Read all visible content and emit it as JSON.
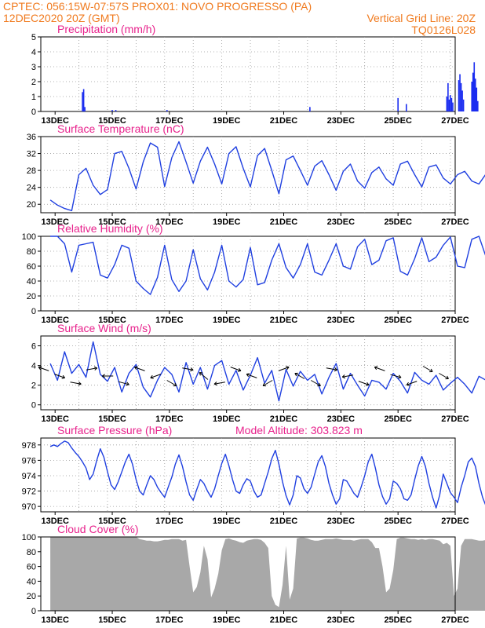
{
  "header": {
    "line1_left": "CPTEC:   056:15W-07:57S   PROX01: NOVO PROGRESSO (PA)",
    "line2_left": "12DEC2020 20Z (GMT)",
    "line2_right": "Vertical Grid Line: 20Z",
    "line3_right": "TQ0126L028",
    "model_altitude": "Model Altitude: 303.823 m"
  },
  "colors": {
    "header_text": "#f07a1e",
    "panel_title": "#e8228c",
    "line": "#2040e0",
    "bar": "#1a2cf0",
    "cloud_fill": "#a8a8a8"
  },
  "x_ticks": [
    "13DEC",
    "15DEC",
    "17DEC",
    "19DEC",
    "21DEC",
    "23DEC",
    "25DEC",
    "27DEC"
  ],
  "chart_data": [
    {
      "type": "bar",
      "title": "Precipitation (mm/h)",
      "ylim": [
        0,
        5
      ],
      "yticks": [
        0,
        1,
        2,
        3,
        4,
        5
      ],
      "x_start_day": 12.833,
      "x_step_hours": 1,
      "grid": true,
      "values": [
        0,
        0,
        0,
        0,
        0,
        0,
        0,
        0,
        0,
        0,
        0,
        0,
        0,
        0,
        0,
        0,
        0,
        0,
        0,
        0,
        0,
        0,
        0,
        0,
        0,
        0,
        0,
        1.3,
        1.5,
        0.3,
        0,
        0,
        0,
        0,
        0,
        0,
        0,
        0,
        0,
        0,
        0,
        0,
        0,
        0,
        0,
        0,
        0,
        0,
        0,
        0,
        0,
        0,
        0.1,
        0,
        0,
        0.1,
        0,
        0,
        0,
        0,
        0,
        0,
        0,
        0,
        0,
        0,
        0,
        0,
        0,
        0,
        0,
        0,
        0,
        0,
        0,
        0,
        0,
        0,
        0,
        0,
        0,
        0,
        0,
        0,
        0,
        0,
        0,
        0,
        0,
        0,
        0,
        0,
        0,
        0,
        0,
        0,
        0,
        0,
        0.1,
        0,
        0,
        0,
        0,
        0,
        0,
        0,
        0,
        0,
        0,
        0,
        0,
        0,
        0,
        0,
        0,
        0,
        0,
        0,
        0,
        0,
        0,
        0,
        0,
        0,
        0,
        0,
        0,
        0,
        0,
        0,
        0,
        0,
        0,
        0,
        0,
        0,
        0,
        0,
        0,
        0,
        0,
        0,
        0,
        0,
        0,
        0,
        0,
        0,
        0,
        0,
        0,
        0,
        0,
        0,
        0,
        0,
        0,
        0,
        0,
        0,
        0,
        0,
        0,
        0,
        0,
        0,
        0,
        0,
        0,
        0,
        0,
        0,
        0,
        0,
        0,
        0,
        0,
        0,
        0,
        0,
        0,
        0,
        0,
        0,
        0,
        0,
        0,
        0,
        0,
        0,
        0,
        0,
        0,
        0,
        0,
        0,
        0,
        0,
        0,
        0,
        0,
        0,
        0,
        0,
        0,
        0,
        0,
        0,
        0,
        0,
        0,
        0,
        0,
        0,
        0,
        0,
        0,
        0,
        0.3,
        0,
        0,
        0,
        0,
        0,
        0,
        0,
        0,
        0,
        0,
        0,
        0,
        0,
        0,
        0,
        0,
        0,
        0,
        0,
        0,
        0,
        0,
        0,
        0,
        0,
        0,
        0,
        0,
        0,
        0,
        0,
        0,
        0,
        0,
        0,
        0,
        0,
        0,
        0,
        0,
        0,
        0,
        0,
        0,
        0,
        0,
        0,
        0,
        0,
        0,
        0,
        0,
        0,
        0,
        0,
        0,
        0,
        0,
        0,
        0,
        0,
        0,
        0,
        0,
        0,
        0,
        0,
        0,
        0,
        0,
        0,
        0,
        0,
        0.9,
        0,
        0,
        0,
        0,
        0,
        0,
        0.5,
        0,
        0,
        0,
        0,
        0,
        0,
        0,
        0,
        0,
        0,
        0,
        0,
        0,
        0,
        0,
        0,
        0,
        0,
        0,
        0,
        0,
        0,
        0,
        0,
        0,
        0,
        0,
        0,
        0,
        0,
        0,
        0,
        0,
        1.0,
        1.9,
        0.8,
        1.1,
        0.9,
        0.6,
        0,
        0,
        0,
        0,
        2.1,
        2.5,
        1.9,
        1.4,
        0.8,
        0,
        0,
        0,
        0,
        0,
        0,
        2.0,
        2.6,
        3.3,
        2.2,
        1.6,
        0.7,
        0,
        0,
        0,
        0,
        0,
        0,
        0,
        0,
        0,
        0,
        0,
        0,
        0,
        0,
        0,
        0,
        0,
        0,
        0,
        0,
        0,
        0,
        0,
        0,
        0,
        0,
        0,
        0,
        0,
        0,
        0,
        0,
        0,
        0,
        0,
        0,
        0,
        0,
        0,
        0,
        0,
        0,
        0,
        0,
        0.6,
        1.3,
        2.2,
        2.5,
        2.4,
        2.0,
        1.5,
        0.7,
        0,
        0,
        0,
        0,
        0,
        0,
        0,
        0,
        0,
        0,
        0,
        0,
        3.5,
        3.3,
        2.5,
        1.6,
        0.6,
        0,
        0,
        0,
        0,
        0,
        0,
        0,
        0,
        0,
        0,
        0,
        0,
        0,
        1.0,
        1.9,
        1.0,
        0,
        0,
        0,
        0.7,
        1.4,
        2.2,
        1.6,
        0.9,
        0,
        0,
        0,
        0,
        0,
        0,
        0
      ]
    },
    {
      "type": "line",
      "title": "Surface Temperature (nC)",
      "ylim": [
        18,
        36
      ],
      "yticks": [
        20,
        24,
        28,
        32,
        36
      ],
      "x_start_day": 12.833,
      "x_step_hours": 6,
      "grid": true,
      "values": [
        21,
        19.8,
        19,
        18.5,
        27,
        28.5,
        24.5,
        22.3,
        23.5,
        32,
        32.5,
        28.5,
        23.6,
        30,
        34.5,
        33.5,
        24.2,
        31,
        34.8,
        30,
        25,
        30.2,
        33.5,
        29.5,
        24.8,
        32,
        33.6,
        28.5,
        24.1,
        31.5,
        33.2,
        28,
        22.5,
        30.5,
        31.4,
        28,
        24.5,
        29,
        30.3,
        27,
        23.3,
        27.8,
        29.5,
        25.5,
        23.8,
        27.5,
        28.8,
        26,
        24.5,
        29.5,
        30.2,
        27,
        24.1,
        28.8,
        29.3,
        26.2,
        24.8,
        27,
        27.8,
        25.5,
        24.8,
        27.2,
        27.8,
        26.5,
        26.8,
        26.2
      ]
    },
    {
      "type": "line",
      "title": "Relative Humidity (%)",
      "ylim": [
        0,
        100
      ],
      "yticks": [
        0,
        20,
        40,
        60,
        80,
        100
      ],
      "x_start_day": 12.833,
      "x_step_hours": 6,
      "grid": true,
      "values": [
        100,
        100,
        90,
        52,
        88,
        90,
        92,
        48,
        44,
        62,
        88,
        84,
        40,
        30,
        22,
        45,
        88,
        42,
        26,
        40,
        82,
        43,
        28,
        52,
        88,
        40,
        32,
        42,
        85,
        35,
        38,
        68,
        90,
        58,
        44,
        62,
        90,
        52,
        48,
        68,
        90,
        60,
        56,
        86,
        96,
        62,
        68,
        94,
        98,
        53,
        48,
        70,
        98,
        66,
        72,
        88,
        99,
        60,
        58,
        96,
        100,
        72,
        60,
        68,
        100,
        80
      ]
    },
    {
      "type": "line",
      "title": "Surface Wind (m/s)",
      "ylim": [
        -0.5,
        7
      ],
      "yticks": [
        0,
        2,
        4,
        6
      ],
      "x_start_day": 12.833,
      "x_step_hours": 6,
      "grid": true,
      "values": [
        4.2,
        2.5,
        5.4,
        3.2,
        4.1,
        2.8,
        6.4,
        3.1,
        2.4,
        3.8,
        1.3,
        3.2,
        4.1,
        1.8,
        0.8,
        2.5,
        3.8,
        3.1,
        1.3,
        4.3,
        2.1,
        3.8,
        1.6,
        4.0,
        4.5,
        2.1,
        3.5,
        1.5,
        3.0,
        4.8,
        2.2,
        3.5,
        0.4,
        3.6,
        1.9,
        3.4,
        2.5,
        3.1,
        1.1,
        2.8,
        4.2,
        1.6,
        3.2,
        2.0,
        0.9,
        2.5,
        2.3,
        1.6,
        3.2,
        2.4,
        1.2,
        3.3,
        2.5,
        2.1,
        3.0,
        1.5,
        2.2,
        2.8,
        2.1,
        1.2,
        2.9,
        2.5,
        1.8,
        0.4,
        3.7,
        2.0
      ]
    },
    {
      "type": "line",
      "title": "Surface Pressure (hPa)",
      "ylim": [
        969.3,
        978.9
      ],
      "yticks": [
        970,
        972,
        974,
        976,
        978
      ],
      "x_start_day": 12.833,
      "x_step_hours": 3,
      "grid": true,
      "values": [
        977.8,
        978.0,
        977.8,
        978.2,
        978.5,
        978.3,
        977.6,
        977.0,
        976.5,
        975.8,
        975.0,
        973.5,
        974.2,
        976.0,
        977.5,
        976.4,
        974.5,
        972.8,
        972.2,
        973.2,
        974.5,
        975.8,
        976.8,
        975.5,
        973.5,
        972.0,
        971.5,
        972.8,
        974.0,
        973.5,
        972.5,
        971.8,
        971.2,
        972.5,
        973.8,
        975.5,
        976.7,
        975.2,
        973.2,
        971.5,
        970.8,
        972.2,
        973.5,
        973.0,
        972.0,
        971.2,
        972.3,
        974.0,
        975.6,
        976.8,
        975.3,
        973.5,
        972.0,
        971.7,
        972.8,
        973.6,
        973.3,
        972.0,
        971.2,
        971.5,
        973.0,
        974.5,
        976.2,
        977.3,
        975.5,
        973.2,
        971.4,
        970.2,
        971.5,
        974.0,
        973.7,
        972.3,
        971.7,
        972.5,
        974.2,
        975.8,
        976.6,
        975.2,
        973.0,
        971.5,
        970.3,
        971.0,
        973.5,
        973.3,
        972.5,
        971.7,
        971.2,
        972.5,
        974.0,
        975.8,
        976.8,
        975.0,
        972.8,
        971.3,
        970.3,
        971.0,
        973.3,
        973.0,
        972.3,
        971.0,
        970.8,
        971.5,
        973.5,
        975.3,
        976.5,
        975.2,
        973.0,
        971.2,
        969.8,
        971.5,
        974.2,
        973.0,
        971.8,
        971.2,
        970.5,
        972.5,
        974.0,
        975.8,
        976.3,
        975.2,
        973.0,
        971.2,
        970.0,
        971.0,
        973.5,
        973.2,
        972.3,
        971.0,
        970.2,
        971.5,
        973.8,
        975.5,
        976.2,
        975.0,
        972.8,
        971.2,
        970.0,
        971.5,
        974.0,
        974.3,
        973.5,
        972.0,
        971.0,
        972.2,
        974.0,
        975.5,
        977.5,
        976.8,
        975.0,
        973.0,
        971.0,
        970.2,
        972.0,
        973.5,
        973.3,
        972.5,
        971.5,
        972.2,
        974.0,
        975.8,
        976.5,
        975.3,
        973.2,
        971.5,
        970.0,
        970.5,
        973.2,
        973.0,
        972.2,
        971.2,
        970.3,
        971.5,
        973.5,
        975.5,
        976.7,
        975.0,
        972.5,
        970.5,
        969.8,
        971.0,
        973.5,
        973.0,
        972.0,
        971.0,
        971.5,
        972.8,
        974.5,
        976.2,
        976.0,
        974.5,
        972.2,
        970.5,
        969.8,
        971.5,
        974.0,
        973.3,
        972.5,
        971.7,
        972.0,
        973.5,
        974.8,
        976.2,
        977.0,
        975.3,
        972.8,
        970.8,
        970.2,
        971.5,
        973.5,
        973.2,
        972.5,
        971.5,
        971.8,
        973.2,
        974.5,
        976.2,
        976.8,
        975.0,
        972.8,
        971.0,
        970.0,
        971.2,
        973.8,
        973.5,
        972.8,
        971.8,
        971.2,
        972.5,
        974.0,
        975.5,
        976.2,
        975.0,
        972.8,
        971.0,
        969.8,
        970.8,
        973.0
      ]
    },
    {
      "type": "area",
      "title": "Cloud Cover (%)",
      "ylim": [
        0,
        100
      ],
      "yticks": [
        0,
        20,
        40,
        60,
        80,
        100
      ],
      "x_start_day": 12.833,
      "x_step_hours": 3,
      "grid": false,
      "values": [
        100,
        100,
        100,
        100,
        100,
        100,
        100,
        100,
        100,
        100,
        100,
        100,
        100,
        100,
        100,
        100,
        100,
        100,
        100,
        100,
        100,
        100,
        100,
        100,
        100,
        97,
        96,
        95,
        95,
        94,
        94,
        95,
        96,
        96,
        97,
        97,
        97,
        95,
        96,
        60,
        25,
        32,
        52,
        88,
        70,
        18,
        30,
        50,
        82,
        97,
        98,
        96,
        95,
        93,
        92,
        95,
        96,
        97,
        97,
        96,
        92,
        85,
        20,
        8,
        5,
        35,
        88,
        15,
        30,
        98,
        99,
        99,
        98,
        96,
        95,
        95,
        96,
        97,
        97,
        97,
        98,
        97,
        96,
        96,
        96,
        95,
        96,
        97,
        97,
        97,
        93,
        85,
        85,
        60,
        25,
        30,
        55,
        97,
        99,
        99,
        98,
        97,
        97,
        96,
        97,
        96,
        97,
        97,
        96,
        95,
        90,
        92,
        88,
        20,
        30,
        88,
        97,
        97,
        97,
        96,
        95,
        95,
        96,
        96,
        97,
        97,
        97,
        96,
        97,
        97,
        96,
        96,
        97,
        98,
        97,
        98,
        97,
        97,
        98,
        98,
        98,
        97,
        99,
        100,
        100,
        99,
        99,
        99,
        99,
        100,
        100,
        99,
        100,
        98,
        98,
        98,
        99,
        98,
        98,
        98,
        98,
        98,
        98,
        97,
        98,
        98,
        98,
        97,
        97,
        97,
        98,
        98,
        98,
        98,
        98,
        98,
        98,
        98,
        97,
        97,
        98,
        97,
        98,
        97,
        97,
        97,
        97,
        98,
        98,
        98,
        98,
        98,
        98,
        98,
        98,
        98,
        98,
        97,
        97,
        97,
        96,
        97,
        97,
        97,
        97,
        97,
        98,
        98,
        98,
        97,
        97,
        97,
        97,
        98,
        98,
        97,
        97,
        98,
        98,
        98,
        97,
        98,
        98,
        97,
        98,
        98,
        98,
        98,
        98,
        98,
        99,
        98,
        98,
        98,
        97,
        98
      ]
    }
  ]
}
